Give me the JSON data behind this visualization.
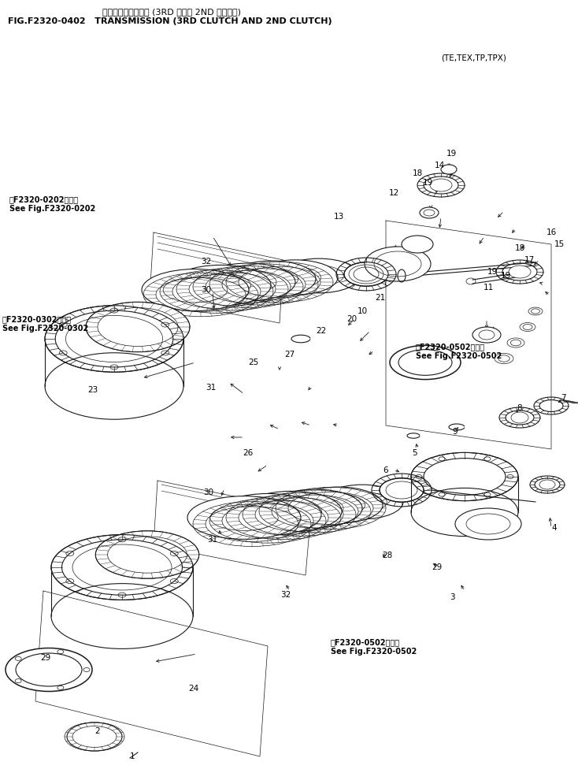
{
  "title_japanese": "トランスミッション (3RD および 2ND クラッチ)",
  "title_english": "FIG.F2320-0402   TRANSMISSION (3RD CLUTCH AND 2ND CLUTCH)",
  "subtitle": "(TE,TEX,TP,TPX)",
  "bg_color": "#ffffff",
  "line_color": "#1a1a1a",
  "text_color": "#000000",
  "fig_width": 7.34,
  "fig_height": 9.76
}
